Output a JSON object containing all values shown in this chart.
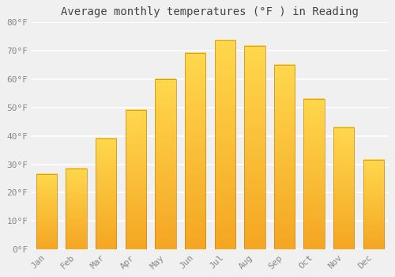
{
  "title": "Average monthly temperatures (°F ) in Reading",
  "months": [
    "Jan",
    "Feb",
    "Mar",
    "Apr",
    "May",
    "Jun",
    "Jul",
    "Aug",
    "Sep",
    "Oct",
    "Nov",
    "Dec"
  ],
  "values": [
    26.5,
    28.5,
    39.0,
    49.0,
    60.0,
    69.0,
    73.5,
    71.5,
    65.0,
    53.0,
    43.0,
    31.5
  ],
  "bar_color_bottom": "#F5A623",
  "bar_color_top": "#FFD84D",
  "bar_edge_color": "#C8881A",
  "bar_edge_width": 0.5,
  "ylim": [
    0,
    80
  ],
  "ytick_step": 10,
  "background_color": "#F0F0F0",
  "plot_bg_color": "#F0F0F0",
  "grid_color": "#FFFFFF",
  "grid_linewidth": 1.2,
  "title_fontsize": 10,
  "tick_fontsize": 8,
  "tick_color": "#888888",
  "font_family": "monospace",
  "bar_width": 0.7
}
